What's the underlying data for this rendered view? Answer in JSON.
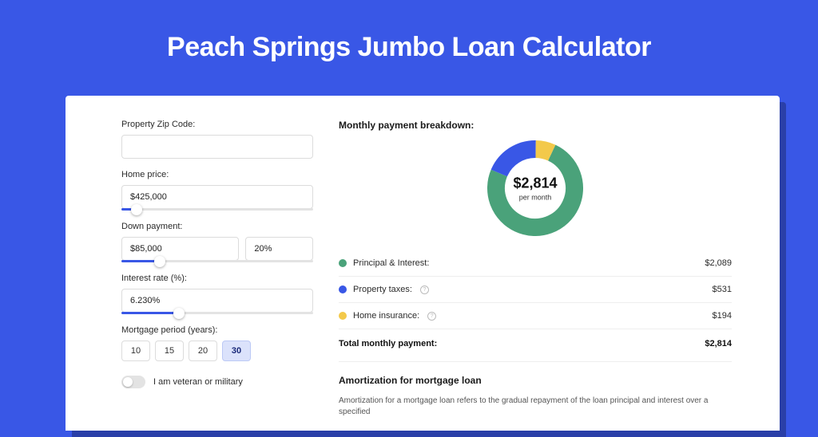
{
  "title": "Peach Springs Jumbo Loan Calculator",
  "colors": {
    "page_bg": "#3957e6",
    "panel_bg": "#ffffff",
    "shadow_bg": "#2a3fa8",
    "accent": "#3957e6"
  },
  "form": {
    "zip": {
      "label": "Property Zip Code:",
      "value": ""
    },
    "home_price": {
      "label": "Home price:",
      "value": "$425,000",
      "slider_pct": 8
    },
    "down_payment": {
      "label": "Down payment:",
      "value": "$85,000",
      "pct": "20%",
      "slider_pct": 20
    },
    "interest_rate": {
      "label": "Interest rate (%):",
      "value": "6.230%",
      "slider_pct": 30
    },
    "period": {
      "label": "Mortgage period (years):",
      "options": [
        "10",
        "15",
        "20",
        "30"
      ],
      "selected": "30"
    },
    "veteran": {
      "label": "I am veteran or military",
      "value": false
    }
  },
  "breakdown": {
    "title": "Monthly payment breakdown:",
    "center_value": "$2,814",
    "center_sub": "per month",
    "donut": {
      "size": 120,
      "stroke": 22,
      "segments": [
        {
          "name": "principal_interest",
          "pct": 74.24,
          "color": "#4aa27a"
        },
        {
          "name": "property_taxes",
          "pct": 18.87,
          "color": "#3957e6"
        },
        {
          "name": "home_insurance",
          "pct": 6.89,
          "color": "#f3c94a"
        }
      ]
    },
    "rows": [
      {
        "label": "Principal & Interest:",
        "value": "$2,089",
        "color": "#4aa27a",
        "info": false
      },
      {
        "label": "Property taxes:",
        "value": "$531",
        "color": "#3957e6",
        "info": true
      },
      {
        "label": "Home insurance:",
        "value": "$194",
        "color": "#f3c94a",
        "info": true
      }
    ],
    "total": {
      "label": "Total monthly payment:",
      "value": "$2,814"
    }
  },
  "amortization": {
    "title": "Amortization for mortgage loan",
    "text": "Amortization for a mortgage loan refers to the gradual repayment of the loan principal and interest over a specified"
  }
}
